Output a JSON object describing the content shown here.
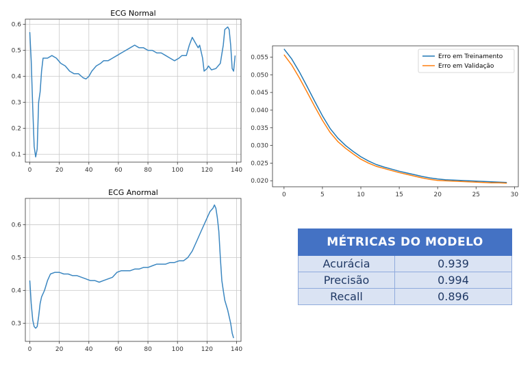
{
  "chart_data": [
    {
      "type": "line",
      "title": "ECG Normal",
      "xlim": [
        -3,
        143
      ],
      "ylim": [
        0.07,
        0.62
      ],
      "xticks": [
        0,
        20,
        40,
        60,
        80,
        100,
        120,
        140
      ],
      "yticks": [
        0.1,
        0.2,
        0.3,
        0.4,
        0.5,
        0.6
      ],
      "grid": true,
      "series": [
        {
          "color": "#3a86c0",
          "points": [
            [
              0,
              0.57
            ],
            [
              1,
              0.46
            ],
            [
              2,
              0.28
            ],
            [
              3,
              0.13
            ],
            [
              4,
              0.09
            ],
            [
              5,
              0.12
            ],
            [
              6,
              0.3
            ],
            [
              7,
              0.34
            ],
            [
              8,
              0.42
            ],
            [
              9,
              0.47
            ],
            [
              12,
              0.47
            ],
            [
              15,
              0.48
            ],
            [
              18,
              0.47
            ],
            [
              21,
              0.45
            ],
            [
              24,
              0.44
            ],
            [
              27,
              0.42
            ],
            [
              30,
              0.41
            ],
            [
              33,
              0.41
            ],
            [
              36,
              0.395
            ],
            [
              38,
              0.39
            ],
            [
              40,
              0.4
            ],
            [
              42,
              0.42
            ],
            [
              45,
              0.44
            ],
            [
              48,
              0.45
            ],
            [
              50,
              0.46
            ],
            [
              53,
              0.46
            ],
            [
              56,
              0.47
            ],
            [
              59,
              0.48
            ],
            [
              62,
              0.49
            ],
            [
              65,
              0.5
            ],
            [
              68,
              0.51
            ],
            [
              71,
              0.52
            ],
            [
              74,
              0.51
            ],
            [
              77,
              0.51
            ],
            [
              80,
              0.5
            ],
            [
              83,
              0.5
            ],
            [
              86,
              0.49
            ],
            [
              89,
              0.49
            ],
            [
              92,
              0.48
            ],
            [
              95,
              0.47
            ],
            [
              98,
              0.46
            ],
            [
              101,
              0.47
            ],
            [
              103,
              0.48
            ],
            [
              106,
              0.48
            ],
            [
              108,
              0.52
            ],
            [
              110,
              0.55
            ],
            [
              112,
              0.53
            ],
            [
              114,
              0.51
            ],
            [
              115,
              0.52
            ],
            [
              117,
              0.47
            ],
            [
              118,
              0.42
            ],
            [
              120,
              0.43
            ],
            [
              121,
              0.44
            ],
            [
              123,
              0.425
            ],
            [
              126,
              0.43
            ],
            [
              129,
              0.45
            ],
            [
              131,
              0.52
            ],
            [
              132,
              0.58
            ],
            [
              134,
              0.59
            ],
            [
              135,
              0.58
            ],
            [
              136,
              0.52
            ],
            [
              137,
              0.43
            ],
            [
              138,
              0.42
            ],
            [
              139,
              0.48
            ]
          ]
        }
      ]
    },
    {
      "type": "line",
      "title": "ECG Anormal",
      "xlim": [
        -3,
        143
      ],
      "ylim": [
        0.245,
        0.68
      ],
      "xticks": [
        0,
        20,
        40,
        60,
        80,
        100,
        120,
        140
      ],
      "yticks": [
        0.3,
        0.4,
        0.5,
        0.6
      ],
      "grid": true,
      "series": [
        {
          "color": "#3a86c0",
          "points": [
            [
              0,
              0.43
            ],
            [
              1,
              0.36
            ],
            [
              2,
              0.31
            ],
            [
              3,
              0.29
            ],
            [
              4,
              0.285
            ],
            [
              5,
              0.29
            ],
            [
              6,
              0.32
            ],
            [
              7,
              0.36
            ],
            [
              8,
              0.38
            ],
            [
              10,
              0.4
            ],
            [
              12,
              0.43
            ],
            [
              14,
              0.45
            ],
            [
              17,
              0.455
            ],
            [
              20,
              0.455
            ],
            [
              23,
              0.45
            ],
            [
              26,
              0.45
            ],
            [
              29,
              0.445
            ],
            [
              32,
              0.445
            ],
            [
              35,
              0.44
            ],
            [
              38,
              0.435
            ],
            [
              41,
              0.43
            ],
            [
              44,
              0.43
            ],
            [
              47,
              0.425
            ],
            [
              50,
              0.43
            ],
            [
              53,
              0.435
            ],
            [
              56,
              0.44
            ],
            [
              59,
              0.455
            ],
            [
              62,
              0.46
            ],
            [
              65,
              0.46
            ],
            [
              68,
              0.46
            ],
            [
              71,
              0.465
            ],
            [
              74,
              0.465
            ],
            [
              77,
              0.47
            ],
            [
              80,
              0.47
            ],
            [
              83,
              0.475
            ],
            [
              86,
              0.48
            ],
            [
              89,
              0.48
            ],
            [
              92,
              0.48
            ],
            [
              95,
              0.485
            ],
            [
              98,
              0.485
            ],
            [
              101,
              0.49
            ],
            [
              104,
              0.49
            ],
            [
              107,
              0.5
            ],
            [
              110,
              0.52
            ],
            [
              113,
              0.55
            ],
            [
              116,
              0.58
            ],
            [
              119,
              0.61
            ],
            [
              122,
              0.64
            ],
            [
              124,
              0.65
            ],
            [
              125,
              0.66
            ],
            [
              126,
              0.65
            ],
            [
              127,
              0.62
            ],
            [
              128,
              0.58
            ],
            [
              129,
              0.5
            ],
            [
              130,
              0.43
            ],
            [
              131,
              0.4
            ],
            [
              132,
              0.37
            ],
            [
              134,
              0.34
            ],
            [
              136,
              0.3
            ],
            [
              137,
              0.27
            ],
            [
              138,
              0.255
            ]
          ]
        }
      ]
    },
    {
      "type": "line",
      "title": "",
      "xlim": [
        -1.5,
        30.5
      ],
      "ylim": [
        0.0183,
        0.0582
      ],
      "xticks": [
        0,
        5,
        10,
        15,
        20,
        25,
        30
      ],
      "yticks": [
        0.02,
        0.025,
        0.03,
        0.035,
        0.04,
        0.045,
        0.05,
        0.055
      ],
      "grid": false,
      "legend": "top-right",
      "series": [
        {
          "name": "Erro em Treinamento",
          "color": "#1f77b4",
          "points": [
            [
              0,
              0.0573
            ],
            [
              1,
              0.0545
            ],
            [
              2,
              0.0508
            ],
            [
              3,
              0.0467
            ],
            [
              4,
              0.0425
            ],
            [
              5,
              0.0384
            ],
            [
              6,
              0.0348
            ],
            [
              7,
              0.0321
            ],
            [
              8,
              0.03
            ],
            [
              9,
              0.0283
            ],
            [
              10,
              0.0268
            ],
            [
              11,
              0.0256
            ],
            [
              12,
              0.0246
            ],
            [
              13,
              0.0239
            ],
            [
              14,
              0.0233
            ],
            [
              15,
              0.0227
            ],
            [
              16,
              0.0222
            ],
            [
              17,
              0.0217
            ],
            [
              18,
              0.0212
            ],
            [
              19,
              0.0208
            ],
            [
              20,
              0.0205
            ],
            [
              21,
              0.0203
            ],
            [
              22,
              0.0202
            ],
            [
              23,
              0.0201
            ],
            [
              24,
              0.02
            ],
            [
              25,
              0.0199
            ],
            [
              26,
              0.0198
            ],
            [
              27,
              0.0197
            ],
            [
              28,
              0.0196
            ],
            [
              29,
              0.0195
            ]
          ]
        },
        {
          "name": "Erro em Validação",
          "color": "#ff7f0e",
          "points": [
            [
              0,
              0.0557
            ],
            [
              1,
              0.0528
            ],
            [
              2,
              0.0491
            ],
            [
              3,
              0.0451
            ],
            [
              4,
              0.041
            ],
            [
              5,
              0.0371
            ],
            [
              6,
              0.0337
            ],
            [
              7,
              0.0311
            ],
            [
              8,
              0.0292
            ],
            [
              9,
              0.0276
            ],
            [
              10,
              0.0261
            ],
            [
              11,
              0.025
            ],
            [
              12,
              0.0241
            ],
            [
              13,
              0.0235
            ],
            [
              14,
              0.0229
            ],
            [
              15,
              0.0223
            ],
            [
              16,
              0.0218
            ],
            [
              17,
              0.0213
            ],
            [
              18,
              0.0208
            ],
            [
              19,
              0.0204
            ],
            [
              20,
              0.0201
            ],
            [
              21,
              0.02
            ],
            [
              22,
              0.0199
            ],
            [
              23,
              0.0198
            ],
            [
              24,
              0.0197
            ],
            [
              25,
              0.0196
            ],
            [
              26,
              0.0195
            ],
            [
              27,
              0.0194
            ],
            [
              28,
              0.0194
            ],
            [
              29,
              0.0193
            ]
          ]
        }
      ]
    }
  ],
  "metrics_table": {
    "title": "MÉTRICAS DO MODELO",
    "rows": [
      {
        "name": "Acurácia",
        "value": "0.939"
      },
      {
        "name": "Precisão",
        "value": "0.994"
      },
      {
        "name": "Recall",
        "value": "0.896"
      }
    ]
  }
}
